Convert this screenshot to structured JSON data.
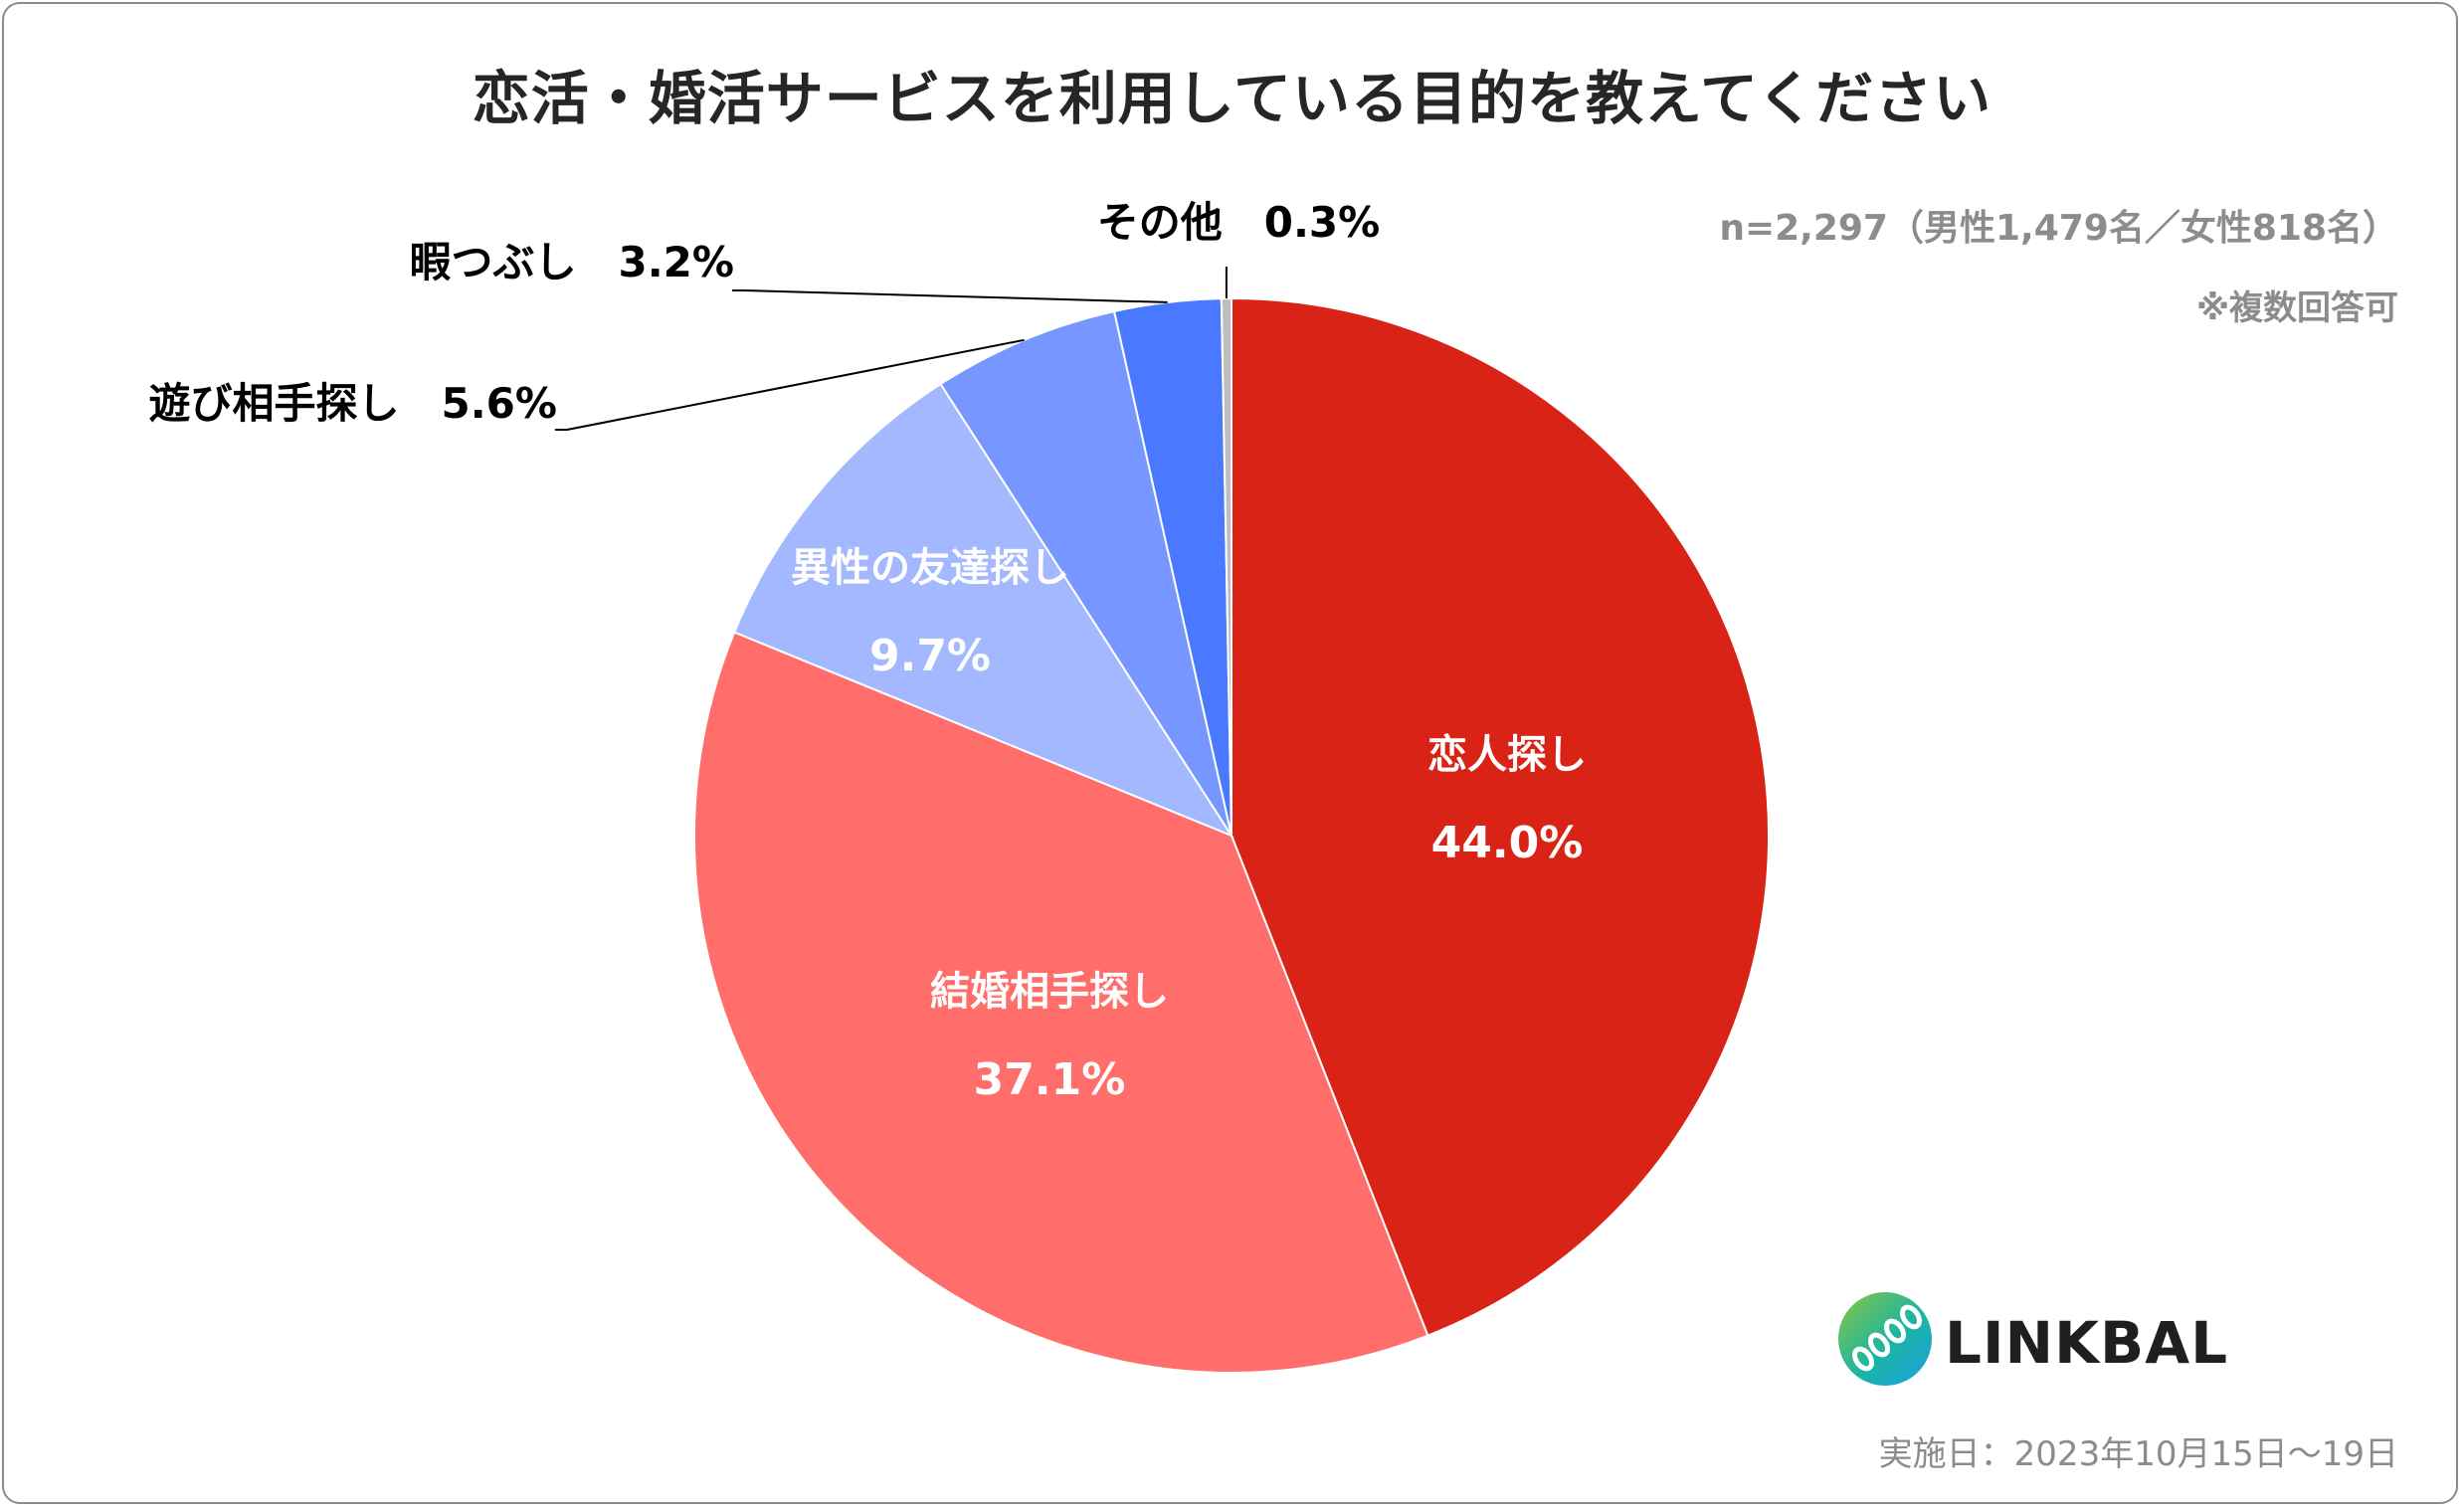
{
  "title": "恋活・婚活サービスを利用している目的を教えてください",
  "note": {
    "sample": "n=2,297（男性1,479名／女性818名）",
    "multiple": "※複数回答可"
  },
  "logo": {
    "text": "LINKBAL"
  },
  "survey_date": "実施日：2023年10月15日～19日",
  "chart_data": {
    "type": "pie",
    "title": "恋活・婚活サービスを利用している目的を教えてください",
    "start_angle_deg": 0,
    "direction": "clockwise",
    "slices": [
      {
        "label": "恋人探し",
        "value": 44.0,
        "value_label": "44.0%",
        "color": "#d92317",
        "label_color": "#ffffff",
        "label_placement": "inside"
      },
      {
        "label": "結婚相手探し",
        "value": 37.1,
        "value_label": "37.1%",
        "color": "#ff6e6b",
        "label_color": "#ffffff",
        "label_placement": "inside"
      },
      {
        "label": "異性の友達探し",
        "value": 9.7,
        "value_label": "9.7%",
        "color": "#a3b8ff",
        "label_color": "#ffffff",
        "label_placement": "inside"
      },
      {
        "label": "遊び相手探し",
        "value": 5.6,
        "value_label": "5.6%",
        "color": "#7796ff",
        "label_color": "#000000",
        "label_placement": "outside-left"
      },
      {
        "label": "暇つぶし",
        "value": 3.2,
        "value_label": "3.2%",
        "color": "#4a78ff",
        "label_color": "#000000",
        "label_placement": "outside-left"
      },
      {
        "label": "その他",
        "value": 0.3,
        "value_label": "0.3%",
        "color": "#bfbfbf",
        "label_color": "#000000",
        "label_placement": "outside-top"
      }
    ]
  }
}
